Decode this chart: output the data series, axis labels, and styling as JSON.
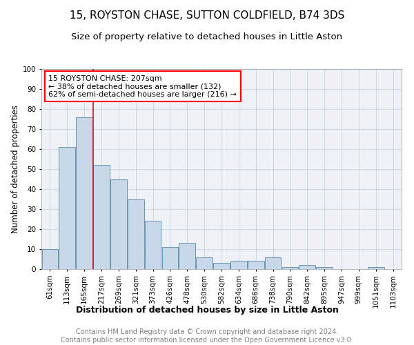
{
  "title": "15, ROYSTON CHASE, SUTTON COLDFIELD, B74 3DS",
  "subtitle": "Size of property relative to detached houses in Little Aston",
  "xlabel": "Distribution of detached houses by size in Little Aston",
  "ylabel": "Number of detached properties",
  "footer_line1": "Contains HM Land Registry data © Crown copyright and database right 2024.",
  "footer_line2": "Contains public sector information licensed under the Open Government Licence v3.0.",
  "bin_labels": [
    "61sqm",
    "113sqm",
    "165sqm",
    "217sqm",
    "269sqm",
    "321sqm",
    "373sqm",
    "426sqm",
    "478sqm",
    "530sqm",
    "582sqm",
    "634sqm",
    "686sqm",
    "738sqm",
    "790sqm",
    "842sqm",
    "895sqm",
    "947sqm",
    "999sqm",
    "1051sqm",
    "1103sqm"
  ],
  "bar_values": [
    10,
    61,
    76,
    52,
    45,
    35,
    24,
    11,
    13,
    6,
    3,
    4,
    4,
    6,
    1,
    2,
    1,
    0,
    0,
    1,
    0
  ],
  "bar_color": "#c8d8e8",
  "bar_edge_color": "#5588aa",
  "grid_color": "#c8d4e0",
  "bg_color": "#eef2f6",
  "vline_x_index": 3,
  "vline_color": "red",
  "annotation_text": "15 ROYSTON CHASE: 207sqm\n← 38% of detached houses are smaller (132)\n62% of semi-detached houses are larger (216) →",
  "annotation_box_color": "white",
  "annotation_box_edge_color": "red",
  "ylim": [
    0,
    100
  ],
  "yticks": [
    0,
    10,
    20,
    30,
    40,
    50,
    60,
    70,
    80,
    90,
    100
  ],
  "title_fontsize": 11,
  "subtitle_fontsize": 9.5,
  "xlabel_fontsize": 9,
  "ylabel_fontsize": 8.5,
  "tick_fontsize": 7.5,
  "annotation_fontsize": 8,
  "footer_fontsize": 7
}
